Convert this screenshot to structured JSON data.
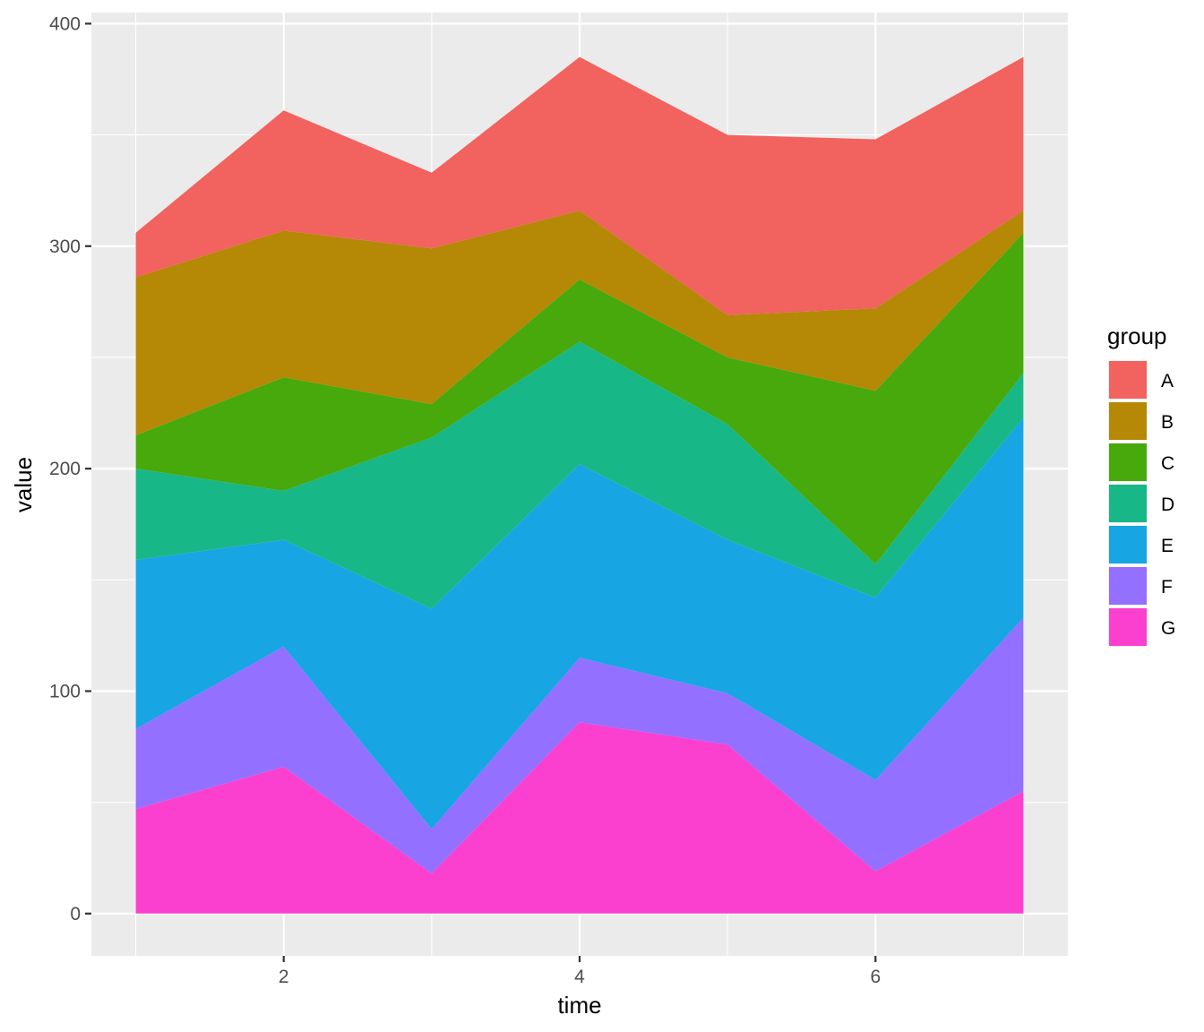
{
  "chart_data": {
    "type": "area",
    "stacked": true,
    "title": "",
    "xlabel": "time",
    "ylabel": "value",
    "x": [
      1,
      2,
      3,
      4,
      5,
      6,
      7
    ],
    "xlim": [
      0.7,
      7.3
    ],
    "ylim": [
      -19,
      405
    ],
    "x_ticks": [
      2,
      4,
      6
    ],
    "x_tick_labels": [
      "2",
      "4",
      "6"
    ],
    "y_ticks": [
      0,
      100,
      200,
      300,
      400
    ],
    "y_tick_labels": [
      "0",
      "100",
      "200",
      "300",
      "400"
    ],
    "grid": true,
    "legend": {
      "title": "group",
      "position": "right"
    },
    "series": [
      {
        "name": "G",
        "color": "#FB40CF",
        "values": [
          47,
          66,
          18,
          86,
          76,
          19,
          55
        ]
      },
      {
        "name": "F",
        "color": "#9370FF",
        "values": [
          36,
          54,
          20,
          29,
          23,
          41,
          78
        ]
      },
      {
        "name": "E",
        "color": "#17A6E3",
        "values": [
          76,
          48,
          99,
          87,
          69,
          82,
          90
        ]
      },
      {
        "name": "D",
        "color": "#18B787",
        "values": [
          41,
          22,
          77,
          55,
          52,
          15,
          20
        ]
      },
      {
        "name": "C",
        "color": "#47A90C",
        "values": [
          15,
          51,
          15,
          28,
          30,
          78,
          63
        ]
      },
      {
        "name": "B",
        "color": "#B58806",
        "values": [
          71,
          66,
          70,
          31,
          19,
          37,
          10
        ]
      },
      {
        "name": "A",
        "color": "#F2625E",
        "values": [
          20,
          54,
          34,
          69,
          81,
          76,
          69
        ]
      }
    ],
    "legend_order": [
      "A",
      "B",
      "C",
      "D",
      "E",
      "F",
      "G"
    ]
  }
}
